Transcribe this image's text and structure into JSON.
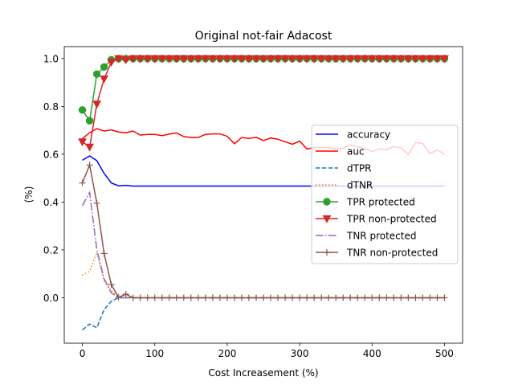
{
  "chart_data": {
    "type": "line",
    "title": "Original not-fair Adacost",
    "xlabel": "Cost Increasement (%)",
    "ylabel": "(%)",
    "xlim": [
      -25,
      525
    ],
    "ylim": [
      -0.19,
      1.05
    ],
    "xticks": [
      0,
      100,
      200,
      300,
      400,
      500
    ],
    "xtick_labels": [
      "0",
      "100",
      "200",
      "300",
      "400",
      "500"
    ],
    "yticks": [
      0.0,
      0.2,
      0.4,
      0.6,
      0.8,
      1.0
    ],
    "ytick_labels": [
      "0.0",
      "0.2",
      "0.4",
      "0.6",
      "0.8",
      "1.0"
    ],
    "grid": false,
    "legend_position": "center-right",
    "series": [
      {
        "name": "accuracy",
        "color": "#0000ff",
        "dash": "solid",
        "marker": "none",
        "x": [
          0,
          10,
          20,
          30,
          40,
          50,
          60,
          70,
          80,
          90,
          100,
          150,
          200,
          250,
          300,
          350,
          400,
          450,
          500
        ],
        "y": [
          0.575,
          0.593,
          0.573,
          0.52,
          0.48,
          0.468,
          0.47,
          0.467,
          0.467,
          0.467,
          0.467,
          0.467,
          0.467,
          0.467,
          0.467,
          0.467,
          0.467,
          0.467,
          0.467
        ]
      },
      {
        "name": "auc",
        "color": "#ff0000",
        "dash": "solid",
        "marker": "none",
        "x": [
          0,
          10,
          20,
          30,
          40,
          50,
          60,
          70,
          80,
          90,
          100,
          110,
          120,
          130,
          140,
          150,
          160,
          170,
          180,
          190,
          200,
          210,
          220,
          230,
          240,
          250,
          260,
          270,
          280,
          290,
          300,
          310,
          320,
          330,
          340,
          350,
          360,
          370,
          380,
          390,
          400,
          410,
          420,
          430,
          440,
          450,
          460,
          470,
          480,
          490,
          500
        ],
        "y": [
          0.665,
          0.69,
          0.707,
          0.697,
          0.702,
          0.693,
          0.69,
          0.697,
          0.68,
          0.683,
          0.683,
          0.678,
          0.684,
          0.689,
          0.674,
          0.67,
          0.67,
          0.683,
          0.685,
          0.685,
          0.675,
          0.644,
          0.67,
          0.666,
          0.671,
          0.657,
          0.668,
          0.663,
          0.652,
          0.642,
          0.655,
          0.622,
          0.628,
          0.628,
          0.628,
          0.622,
          0.625,
          0.64,
          0.63,
          0.625,
          0.612,
          0.622,
          0.62,
          0.632,
          0.627,
          0.598,
          0.649,
          0.645,
          0.602,
          0.618,
          0.6
        ]
      },
      {
        "name": "dTPR",
        "color": "#1f77b4",
        "dash": "dashed",
        "marker": "none",
        "x": [
          0,
          10,
          20,
          30,
          40,
          50,
          60,
          70,
          80,
          100,
          200,
          300,
          400,
          500
        ],
        "y": [
          -0.135,
          -0.11,
          -0.125,
          -0.05,
          -0.015,
          0.0,
          0.0,
          0.0,
          0.0,
          0.0,
          0.0,
          0.0,
          0.0,
          0.0
        ]
      },
      {
        "name": "dTNR",
        "color": "#ff7f0e",
        "dash": "dotted",
        "marker": "none",
        "x": [
          0,
          10,
          20,
          30,
          40,
          50,
          60,
          70,
          100,
          200,
          300,
          400,
          500
        ],
        "y": [
          0.095,
          0.11,
          0.19,
          0.07,
          0.03,
          0.005,
          0.0,
          0.0,
          0.0,
          0.0,
          0.0,
          0.0,
          0.0
        ]
      },
      {
        "name": "TPR protected",
        "color": "#2ca02c",
        "dash": "solid",
        "marker": "circle",
        "x": [
          0,
          10,
          20,
          30,
          40,
          50,
          60,
          70,
          80,
          90,
          100,
          110,
          120,
          130,
          140,
          150,
          160,
          170,
          180,
          190,
          200,
          210,
          220,
          230,
          240,
          250,
          260,
          270,
          280,
          290,
          300,
          310,
          320,
          330,
          340,
          350,
          360,
          370,
          380,
          390,
          400,
          410,
          420,
          430,
          440,
          450,
          460,
          470,
          480,
          490,
          500
        ],
        "y": [
          0.785,
          0.74,
          0.935,
          0.965,
          0.995,
          1.0,
          1.0,
          1.0,
          1.0,
          1.0,
          1.0,
          1.0,
          1.0,
          1.0,
          1.0,
          1.0,
          1.0,
          1.0,
          1.0,
          1.0,
          1.0,
          1.0,
          1.0,
          1.0,
          1.0,
          1.0,
          1.0,
          1.0,
          1.0,
          1.0,
          1.0,
          1.0,
          1.0,
          1.0,
          1.0,
          1.0,
          1.0,
          1.0,
          1.0,
          1.0,
          1.0,
          1.0,
          1.0,
          1.0,
          1.0,
          1.0,
          1.0,
          1.0,
          1.0,
          1.0,
          1.0
        ]
      },
      {
        "name": "TPR non-protected",
        "color": "#d62728",
        "dash": "solid",
        "marker": "triangle_down",
        "x": [
          0,
          10,
          20,
          30,
          40,
          50,
          60,
          70,
          80,
          90,
          100,
          110,
          120,
          130,
          140,
          150,
          160,
          170,
          180,
          190,
          200,
          210,
          220,
          230,
          240,
          250,
          260,
          270,
          280,
          290,
          300,
          310,
          320,
          330,
          340,
          350,
          360,
          370,
          380,
          390,
          400,
          410,
          420,
          430,
          440,
          450,
          460,
          470,
          480,
          490,
          500
        ],
        "y": [
          0.652,
          0.63,
          0.81,
          0.915,
          0.985,
          1.0,
          0.995,
          1.0,
          1.0,
          1.0,
          1.0,
          1.0,
          1.0,
          1.0,
          1.0,
          1.0,
          1.0,
          1.0,
          1.0,
          1.0,
          1.0,
          1.0,
          1.0,
          1.0,
          1.0,
          1.0,
          1.0,
          1.0,
          1.0,
          1.0,
          1.0,
          1.0,
          1.0,
          1.0,
          1.0,
          1.0,
          1.0,
          1.0,
          1.0,
          1.0,
          1.0,
          1.0,
          1.0,
          1.0,
          1.0,
          1.0,
          1.0,
          1.0,
          1.0,
          1.0,
          1.0
        ]
      },
      {
        "name": "TNR protected",
        "color": "#9467bd",
        "dash": "dashdot",
        "marker": "none",
        "x": [
          0,
          10,
          20,
          30,
          40,
          50,
          60,
          70,
          100,
          200,
          300,
          400,
          500
        ],
        "y": [
          0.385,
          0.44,
          0.2,
          0.08,
          0.02,
          0.002,
          0.0,
          0.0,
          0.0,
          0.0,
          0.0,
          0.0,
          0.0
        ]
      },
      {
        "name": "TNR non-protected",
        "color": "#8c564b",
        "dash": "solid",
        "marker": "plus",
        "x": [
          0,
          10,
          20,
          30,
          40,
          50,
          60,
          70,
          80,
          90,
          100,
          110,
          120,
          130,
          140,
          150,
          160,
          170,
          180,
          190,
          200,
          210,
          220,
          230,
          240,
          250,
          260,
          270,
          280,
          290,
          300,
          310,
          320,
          330,
          340,
          350,
          360,
          370,
          380,
          390,
          400,
          410,
          420,
          430,
          440,
          450,
          460,
          470,
          480,
          490,
          500
        ],
        "y": [
          0.48,
          0.555,
          0.395,
          0.185,
          0.055,
          0.002,
          0.015,
          0.0,
          0.0,
          0.0,
          0.0,
          0.0,
          0.0,
          0.0,
          0.0,
          0.0,
          0.0,
          0.0,
          0.0,
          0.0,
          0.0,
          0.0,
          0.0,
          0.0,
          0.0,
          0.0,
          0.0,
          0.0,
          0.0,
          0.0,
          0.0,
          0.0,
          0.0,
          0.0,
          0.0,
          0.0,
          0.0,
          0.0,
          0.0,
          0.0,
          0.0,
          0.0,
          0.0,
          0.0,
          0.0,
          0.0,
          0.0,
          0.0,
          0.0,
          0.0,
          0.0
        ]
      }
    ]
  }
}
